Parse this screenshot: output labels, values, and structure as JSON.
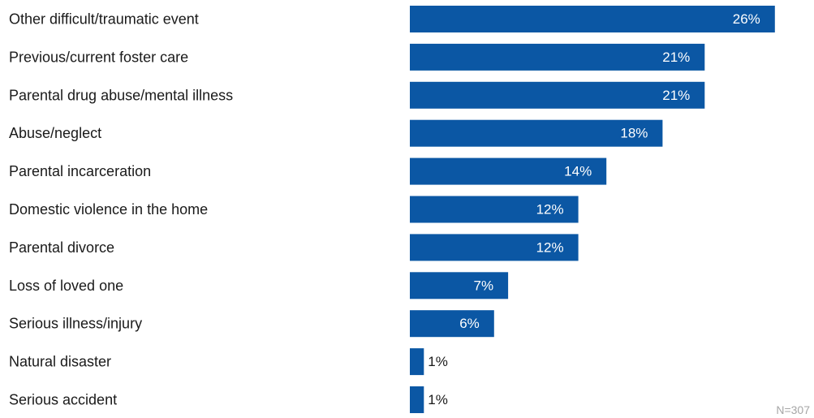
{
  "chart_data": {
    "type": "bar",
    "orientation": "horizontal",
    "categories": [
      "Other difficult/traumatic event",
      "Previous/current foster care",
      "Parental drug abuse/mental illness",
      "Abuse/neglect",
      "Parental incarceration",
      "Domestic violence in the home",
      "Parental divorce",
      "Loss of loved one",
      "Serious illness/injury",
      "Natural disaster",
      "Serious accident"
    ],
    "values": [
      26,
      21,
      21,
      18,
      14,
      12,
      12,
      7,
      6,
      1,
      1
    ],
    "value_labels": [
      "26%",
      "21%",
      "21%",
      "18%",
      "14%",
      "12%",
      "12%",
      "7%",
      "6%",
      "1%",
      "1%"
    ],
    "unit": "%",
    "bar_color": "#0b57a4",
    "title": "",
    "xlabel": "",
    "ylabel": "",
    "grid": false,
    "legend": "none"
  },
  "footnote": "N=307"
}
